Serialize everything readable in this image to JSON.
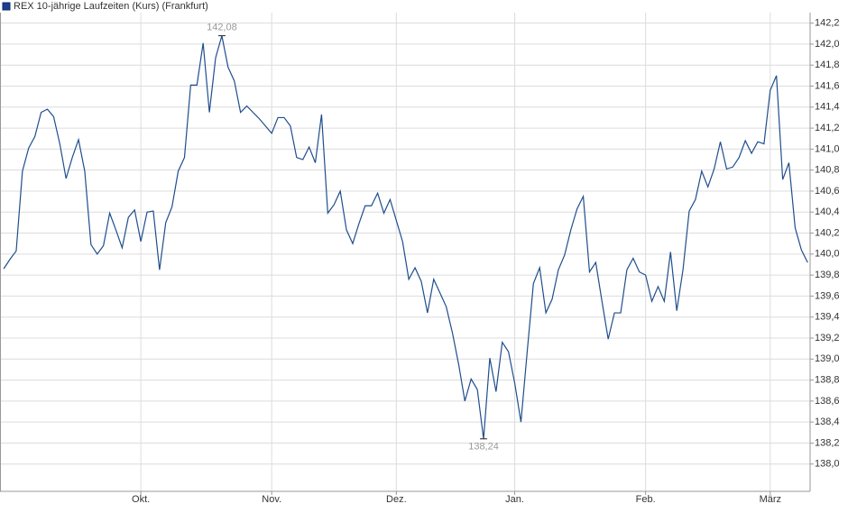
{
  "chart_data": {
    "type": "line",
    "series": [
      {
        "name": "REX 10-jährige Laufzeiten (Kurs) (Frankfurt)",
        "color": "#1f4e8c",
        "values": [
          139.86,
          139.95,
          140.03,
          140.79,
          141.01,
          141.12,
          141.35,
          141.38,
          141.31,
          141.05,
          140.72,
          140.92,
          141.09,
          140.79,
          140.09,
          140.0,
          140.08,
          140.39,
          140.23,
          140.06,
          140.35,
          140.42,
          140.12,
          140.4,
          140.41,
          139.85,
          140.3,
          140.45,
          140.79,
          140.92,
          141.61,
          141.61,
          142.01,
          141.35,
          141.87,
          142.08,
          141.78,
          141.65,
          141.35,
          141.41,
          141.35,
          141.29,
          141.22,
          141.15,
          141.3,
          141.3,
          141.22,
          140.92,
          140.9,
          141.02,
          140.87,
          141.33,
          140.39,
          140.47,
          140.6,
          140.23,
          140.1,
          140.29,
          140.46,
          140.46,
          140.58,
          140.39,
          140.52,
          140.32,
          140.12,
          139.76,
          139.87,
          139.74,
          139.44,
          139.76,
          139.63,
          139.5,
          139.25,
          138.95,
          138.6,
          138.81,
          138.71,
          138.24,
          139.01,
          138.69,
          139.16,
          139.07,
          138.77,
          138.4,
          139.07,
          139.72,
          139.87,
          139.44,
          139.57,
          139.85,
          139.99,
          140.23,
          140.43,
          140.55,
          139.83,
          139.92,
          139.55,
          139.19,
          139.44,
          139.44,
          139.85,
          139.96,
          139.83,
          139.8,
          139.55,
          139.69,
          139.55,
          140.02,
          139.46,
          139.85,
          140.41,
          140.52,
          140.79,
          140.64,
          140.81,
          141.07,
          140.81,
          140.83,
          140.92,
          141.08,
          140.96,
          141.07,
          141.05,
          141.56,
          141.7,
          140.71,
          140.87,
          140.25,
          140.04,
          139.92
        ]
      }
    ],
    "max_label": {
      "value": 142.08,
      "label": "142,08"
    },
    "min_label": {
      "value": 138.24,
      "label": "138,24"
    },
    "xlim": [
      -0.6,
      129.4
    ],
    "xticks": [
      {
        "value": 22,
        "label": "Okt."
      },
      {
        "value": 43,
        "label": "Nov."
      },
      {
        "value": 63,
        "label": "Dez."
      },
      {
        "value": 82,
        "label": "Jan."
      },
      {
        "value": 103,
        "label": "Feb."
      },
      {
        "value": 123,
        "label": "März"
      }
    ],
    "ylim": [
      137.74,
      142.3
    ],
    "yticks": [
      {
        "value": 138.0,
        "label": "138,0"
      },
      {
        "value": 138.2,
        "label": "138,2"
      },
      {
        "value": 138.4,
        "label": "138,4"
      },
      {
        "value": 138.6,
        "label": "138,6"
      },
      {
        "value": 138.8,
        "label": "138,8"
      },
      {
        "value": 139.0,
        "label": "139,0"
      },
      {
        "value": 139.2,
        "label": "139,2"
      },
      {
        "value": 139.4,
        "label": "139,4"
      },
      {
        "value": 139.6,
        "label": "139,6"
      },
      {
        "value": 139.8,
        "label": "139,8"
      },
      {
        "value": 140.0,
        "label": "140,0"
      },
      {
        "value": 140.2,
        "label": "140,2"
      },
      {
        "value": 140.4,
        "label": "140,4"
      },
      {
        "value": 140.6,
        "label": "140,6"
      },
      {
        "value": 140.8,
        "label": "140,8"
      },
      {
        "value": 141.0,
        "label": "141,0"
      },
      {
        "value": 141.2,
        "label": "141,2"
      },
      {
        "value": 141.4,
        "label": "141,4"
      },
      {
        "value": 141.6,
        "label": "141,6"
      },
      {
        "value": 141.8,
        "label": "141,8"
      },
      {
        "value": 142.0,
        "label": "142,0"
      },
      {
        "value": 142.2,
        "label": "142,2"
      }
    ],
    "grid": true
  }
}
